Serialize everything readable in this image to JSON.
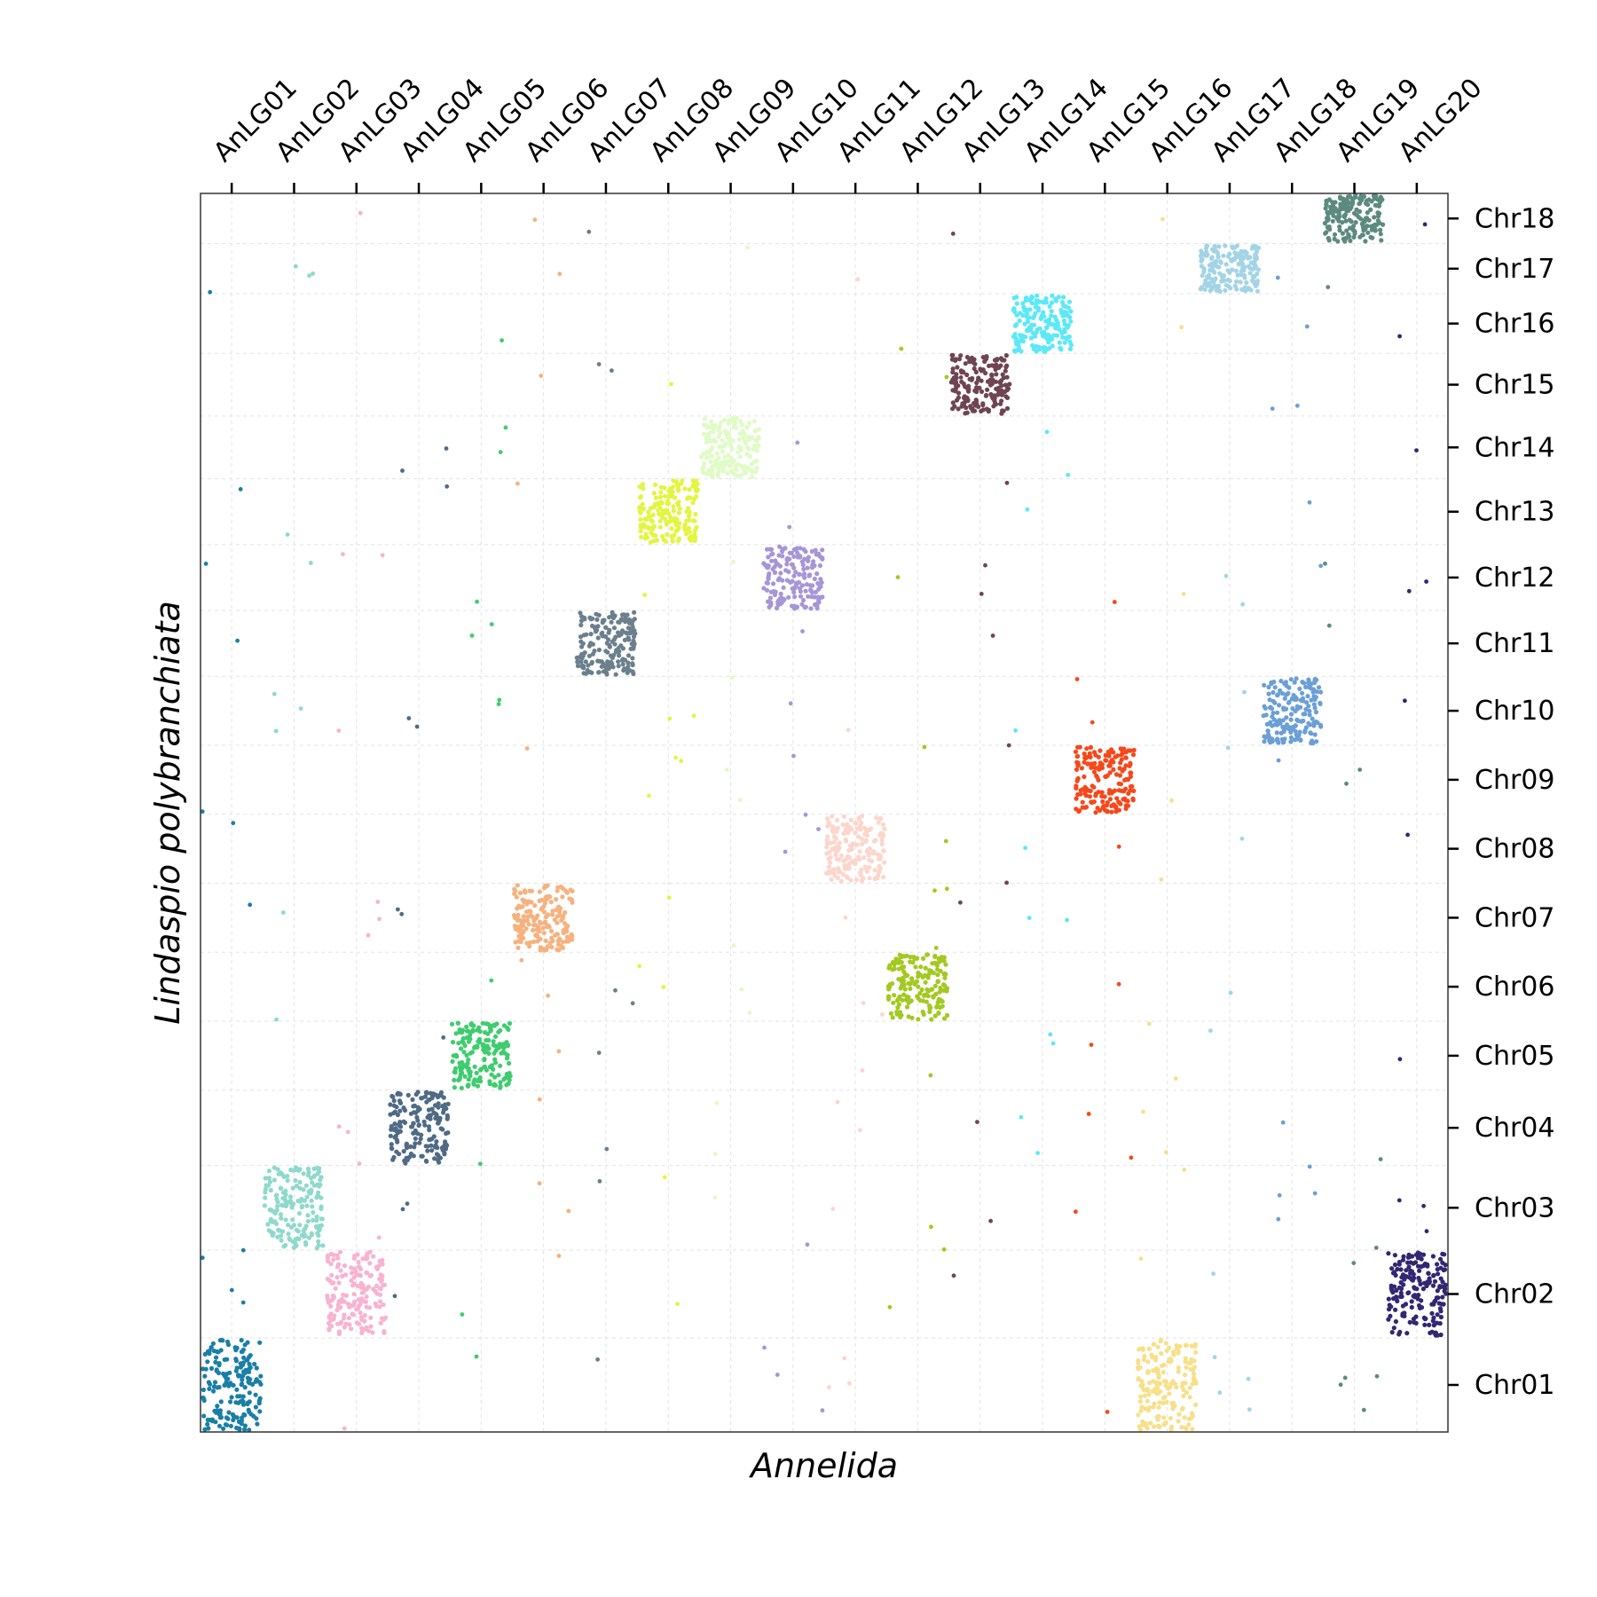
{
  "chart_data": {
    "type": "scatter",
    "title": "",
    "xlabel": "Annelida",
    "ylabel": "Lindaspio polybranchiata",
    "x_tick_position": "top",
    "y_tick_position": "right",
    "grid": true,
    "legend": "none",
    "x_groups": [
      {
        "label": "AnLG01",
        "color": "#1a7fa6"
      },
      {
        "label": "AnLG02",
        "color": "#8fd9cc"
      },
      {
        "label": "AnLG03",
        "color": "#f7b3d0"
      },
      {
        "label": "AnLG04",
        "color": "#4f6b85"
      },
      {
        "label": "AnLG05",
        "color": "#3fcc6e"
      },
      {
        "label": "AnLG06",
        "color": "#f5b27f"
      },
      {
        "label": "AnLG07",
        "color": "#6b7f8c"
      },
      {
        "label": "AnLG08",
        "color": "#e3f542"
      },
      {
        "label": "AnLG09",
        "color": "#e0fbc6"
      },
      {
        "label": "AnLG10",
        "color": "#a696d6"
      },
      {
        "label": "AnLG11",
        "color": "#fcd6cc"
      },
      {
        "label": "AnLG12",
        "color": "#a3c922"
      },
      {
        "label": "AnLG13",
        "color": "#6e4552"
      },
      {
        "label": "AnLG14",
        "color": "#5ce8f7"
      },
      {
        "label": "AnLG15",
        "color": "#f5481a"
      },
      {
        "label": "AnLG16",
        "color": "#f7e08a"
      },
      {
        "label": "AnLG17",
        "color": "#a3d4e6"
      },
      {
        "label": "AnLG18",
        "color": "#6b9fd6"
      },
      {
        "label": "AnLG19",
        "color": "#5c8a7f"
      },
      {
        "label": "AnLG20",
        "color": "#332673"
      }
    ],
    "y_groups": [
      {
        "label": "Chr01",
        "size": 1.5
      },
      {
        "label": "Chr02",
        "size": 1.4
      },
      {
        "label": "Chr03",
        "size": 1.35
      },
      {
        "label": "Chr04",
        "size": 1.2
      },
      {
        "label": "Chr05",
        "size": 1.1
      },
      {
        "label": "Chr06",
        "size": 1.1
      },
      {
        "label": "Chr07",
        "size": 1.1
      },
      {
        "label": "Chr08",
        "size": 1.1
      },
      {
        "label": "Chr09",
        "size": 1.1
      },
      {
        "label": "Chr10",
        "size": 1.1
      },
      {
        "label": "Chr11",
        "size": 1.05
      },
      {
        "label": "Chr12",
        "size": 1.05
      },
      {
        "label": "Chr13",
        "size": 1.05
      },
      {
        "label": "Chr14",
        "size": 1.0
      },
      {
        "label": "Chr15",
        "size": 1.0
      },
      {
        "label": "Chr16",
        "size": 0.95
      },
      {
        "label": "Chr17",
        "size": 0.8
      },
      {
        "label": "Chr18",
        "size": 0.8
      }
    ],
    "blocks": [
      {
        "x": "AnLG01",
        "y": "Chr01"
      },
      {
        "x": "AnLG02",
        "y": "Chr03"
      },
      {
        "x": "AnLG03",
        "y": "Chr02"
      },
      {
        "x": "AnLG04",
        "y": "Chr04"
      },
      {
        "x": "AnLG05",
        "y": "Chr05"
      },
      {
        "x": "AnLG06",
        "y": "Chr07"
      },
      {
        "x": "AnLG07",
        "y": "Chr11"
      },
      {
        "x": "AnLG08",
        "y": "Chr13"
      },
      {
        "x": "AnLG09",
        "y": "Chr14"
      },
      {
        "x": "AnLG10",
        "y": "Chr12"
      },
      {
        "x": "AnLG11",
        "y": "Chr08"
      },
      {
        "x": "AnLG12",
        "y": "Chr06"
      },
      {
        "x": "AnLG13",
        "y": "Chr15"
      },
      {
        "x": "AnLG14",
        "y": "Chr16"
      },
      {
        "x": "AnLG15",
        "y": "Chr09"
      },
      {
        "x": "AnLG16",
        "y": "Chr01"
      },
      {
        "x": "AnLG17",
        "y": "Chr17"
      },
      {
        "x": "AnLG18",
        "y": "Chr10"
      },
      {
        "x": "AnLG19",
        "y": "Chr18"
      },
      {
        "x": "AnLG20",
        "y": "Chr02"
      }
    ]
  }
}
